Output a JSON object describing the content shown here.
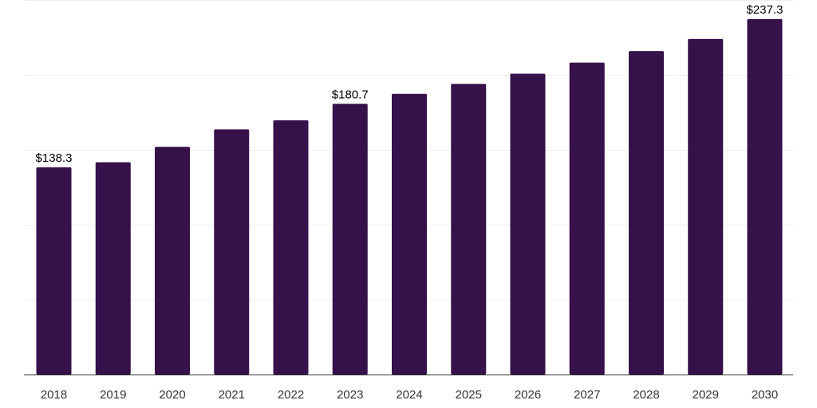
{
  "chart_data": {
    "type": "bar",
    "title": "",
    "xlabel": "",
    "ylabel": "",
    "categories": [
      "2018",
      "2019",
      "2020",
      "2021",
      "2022",
      "2023",
      "2024",
      "2025",
      "2026",
      "2027",
      "2028",
      "2029",
      "2030"
    ],
    "values": [
      138.3,
      141.7,
      152.0,
      163.6,
      169.7,
      180.7,
      187.4,
      194.0,
      200.8,
      208.2,
      215.9,
      224.0,
      237.3
    ],
    "data_labels": [
      {
        "category": "2018",
        "text": "$138.3"
      },
      {
        "category": "2023",
        "text": "$180.7"
      },
      {
        "category": "2030",
        "text": "$237.3"
      }
    ],
    "ylim": [
      0,
      250
    ],
    "y_gridlines": [
      50,
      100,
      150,
      200,
      250
    ],
    "y_axis_visible": false,
    "grid": true,
    "legend": "none",
    "bar_color": "#36114a",
    "grid_color": "#eeeeee",
    "axis_color": "#333333"
  }
}
